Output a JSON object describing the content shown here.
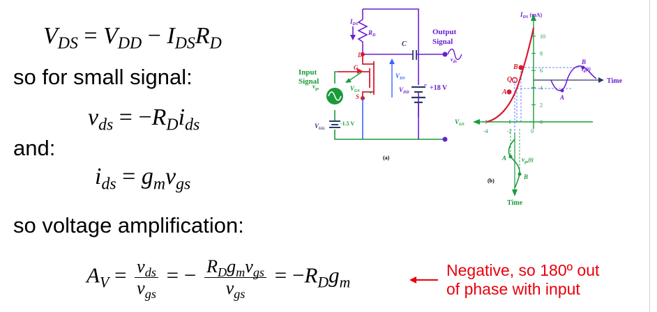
{
  "equations": {
    "vds_dc": {
      "lhs": "V",
      "lhs_sub": "DS",
      "eq": "=",
      "t1": "V",
      "t1_sub": "DD",
      "minus": "−",
      "t2": "I",
      "t2_sub": "DS",
      "t3": "R",
      "t3_sub": "D"
    },
    "vds_ac": {
      "lhs": "v",
      "lhs_sub": "ds",
      "eq": "=",
      "minus": "−",
      "t1": "R",
      "t1_sub": "D",
      "t2": "i",
      "t2_sub": "ds"
    },
    "ids_ac": {
      "lhs": "i",
      "lhs_sub": "ds",
      "eq": "=",
      "t1": "g",
      "t1_sub": "m",
      "t2": "v",
      "t2_sub": "gs"
    },
    "av": {
      "lhs": "A",
      "lhs_sub": "V",
      "eq1": "=",
      "f1_num": "v",
      "f1_num_sub": "ds",
      "f1_den": "v",
      "f1_den_sub": "gs",
      "eq2": "=",
      "minus": "−",
      "f2_num_a": "R",
      "f2_num_a_sub": "D",
      "f2_num_b": "g",
      "f2_num_b_sub": "m",
      "f2_num_c": "v",
      "f2_num_c_sub": "gs",
      "f2_den": "v",
      "f2_den_sub": "gs",
      "eq3": "=",
      "minus2": "−",
      "r1": "R",
      "r1_sub": "D",
      "r2": "g",
      "r2_sub": "m"
    }
  },
  "text": {
    "small_signal": "so for small signal:",
    "and": "and:",
    "amplification": "so voltage amplification:"
  },
  "note": {
    "line1": "Negative, so 180º out",
    "line2": "of phase with input"
  },
  "circuit": {
    "ids": "I",
    "ids_sub": "DS",
    "rd": "R",
    "rd_sub": "D",
    "c": "C",
    "output_signal_1": "Output",
    "output_signal_2": "Signal",
    "vds_out": "v",
    "vds_out_sub": "ds",
    "d": "D",
    "g": "G",
    "s": "S",
    "vds": "V",
    "vds_sub": "DS",
    "vgs": "V",
    "vgs_sub": "GS",
    "vdd": "V",
    "vdd_sub": "DD",
    "vdd_value": "+18 V",
    "input_signal_1": "Input",
    "input_signal_2": "Signal",
    "vgs_in": "v",
    "vgs_in_sub": "gs",
    "vgg": "V",
    "vgg_sub": "GG",
    "vgg_value": "-1.5 V",
    "caption": "(a)"
  },
  "graph": {
    "y_label": "I",
    "y_label_sub": "DS",
    "y_unit": "(mA)",
    "y_ticks": [
      "10",
      "8",
      "6",
      "4",
      "2",
      "0"
    ],
    "x_ticks": [
      "-4",
      "-2",
      "0"
    ],
    "x_axis_label": "V",
    "x_axis_sub": "GS",
    "time_right": "Time",
    "time_bottom": "Time",
    "id_wave": "i",
    "id_wave_sub": "d",
    "id_wave_arg": "(t)",
    "vgs_wave": "v",
    "vgs_wave_sub": "gs",
    "vgs_wave_arg": "(t)",
    "pt_a": "A",
    "pt_b": "B",
    "pt_q": "Q",
    "caption": "(b)",
    "colors": {
      "purple": "#6a1fd1",
      "red": "#d81b2e",
      "green": "#1a9a3c",
      "grid": "#3a62ff",
      "dark": "#2a3a6a"
    }
  }
}
